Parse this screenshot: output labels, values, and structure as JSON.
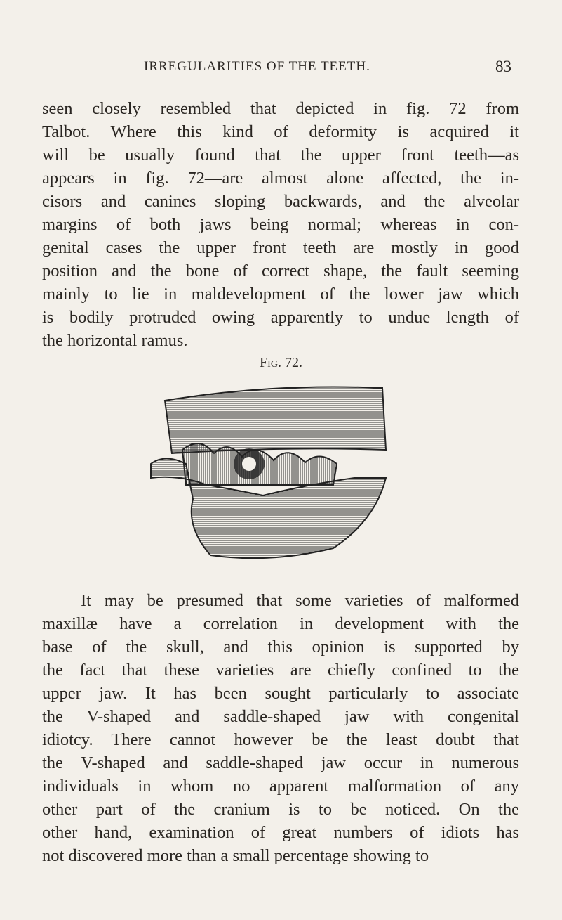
{
  "header": {
    "title": "IRREGULARITIES OF THE TEETH.",
    "page": "83"
  },
  "paragraphs": [
    {
      "lines": [
        "seen closely resembled that depicted in fig. 72 from",
        "Talbot. Where this kind of deformity is acquired it",
        "will be usually found that the upper front teeth—as",
        "appears in fig. 72—are almost alone affected, the in-",
        "cisors and canines sloping backwards, and the alveolar",
        "margins of both jaws being normal; whereas in con-",
        "genital cases the upper front teeth are mostly in good",
        "position and the bone of correct shape, the fault seeming",
        "mainly to lie in maldevelopment of the lower jaw which",
        "is bodily protruded owing apparently to undue length of",
        "the horizontal ramus."
      ]
    },
    {
      "lines": [
        "It may be presumed that some varieties of malformed",
        "maxillæ have a correlation in development with the",
        "base of the skull, and this opinion is supported by",
        "the fact that these varieties are chiefly confined to the",
        "upper jaw. It has been sought particularly to associate",
        "the V-shaped and saddle-shaped jaw with congenital",
        "idiotcy. There cannot however be the least doubt that",
        "the V-shaped and saddle-shaped jaw occur in numerous",
        "individuals in whom no apparent malformation of any",
        "other part of the cranium is to be noticed. On the",
        "other hand, examination of great numbers of idiots has",
        "not discovered more than a small percentage showing to"
      ]
    }
  ],
  "figure": {
    "caption": "Fig. 72."
  }
}
